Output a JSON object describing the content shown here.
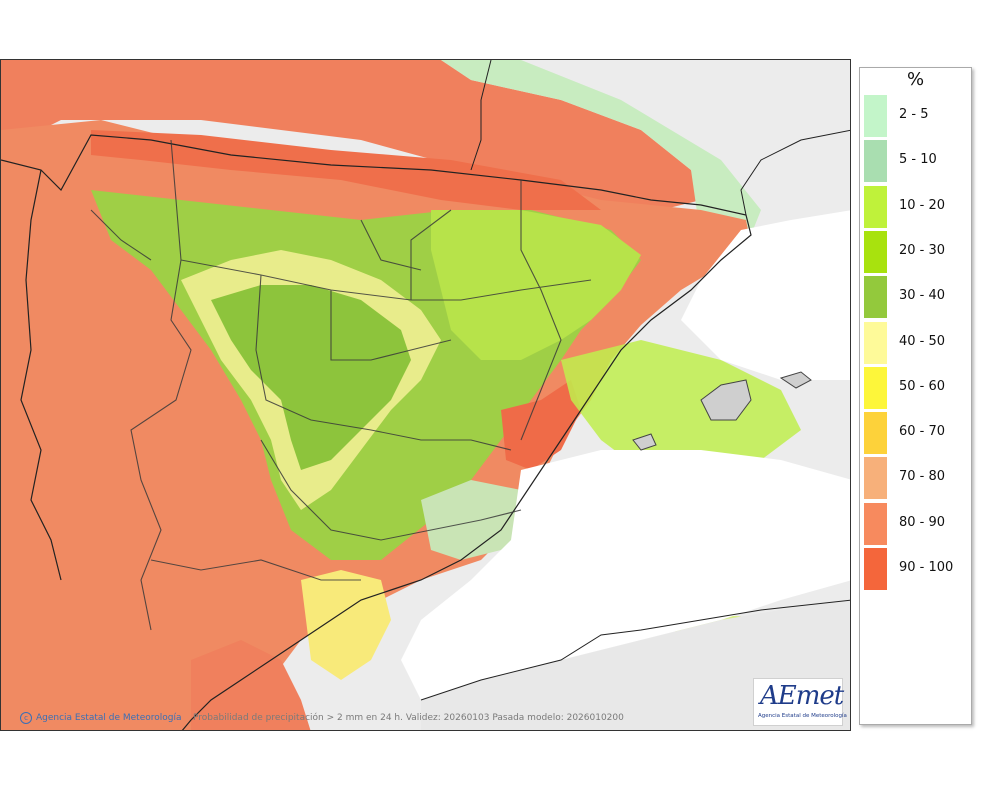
{
  "map": {
    "credit": "Agencia Estatal de Meteorología",
    "product": "Probabilidad de precipitación > 2 mm en 24 h. Validez: 20260103 Pasada modelo: 2026010200",
    "logo_text": "AEmet",
    "logo_subtitle": "Agencia Estatal de Meteorología",
    "colors": {
      "sea_bg": "#ececec",
      "high": "#f27d5a",
      "very_high": "#ee6a45",
      "mid": "#f7b07a",
      "yellow": "#f5f29a",
      "green": "#9fd046",
      "dark_green": "#86c23f",
      "light_green": "#c6f0c6"
    }
  },
  "legend": {
    "title": "%",
    "items": [
      {
        "label": "2 - 5",
        "color": "#c3f5c9"
      },
      {
        "label": "5 - 10",
        "color": "#a9deb0"
      },
      {
        "label": "10 - 20",
        "color": "#bff23a"
      },
      {
        "label": "20 - 30",
        "color": "#a8e20e"
      },
      {
        "label": "30 - 40",
        "color": "#93c93c"
      },
      {
        "label": "40 - 50",
        "color": "#fefa99"
      },
      {
        "label": "50 - 60",
        "color": "#fdf63a"
      },
      {
        "label": "60 - 70",
        "color": "#fdd23a"
      },
      {
        "label": "70 - 80",
        "color": "#f7b07a"
      },
      {
        "label": "80 - 90",
        "color": "#f78a5e"
      },
      {
        "label": "90 - 100",
        "color": "#f4663b"
      }
    ]
  }
}
